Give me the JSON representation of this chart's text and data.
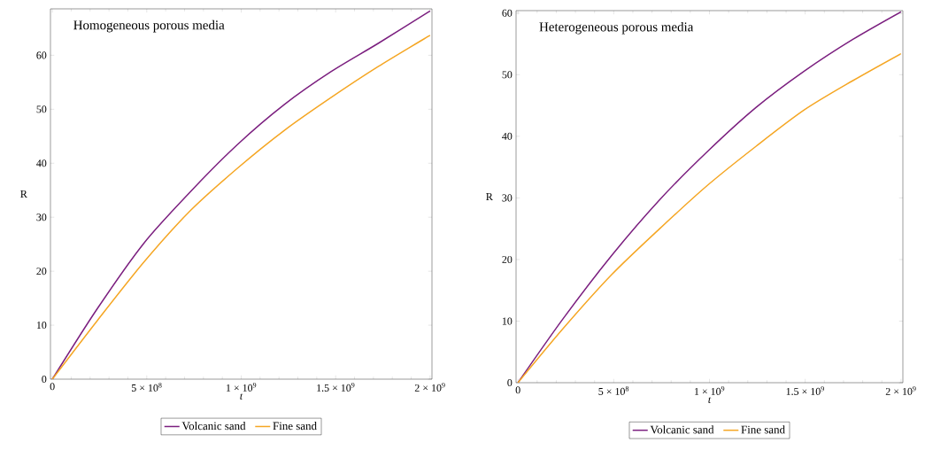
{
  "chart_data": [
    {
      "type": "line",
      "title": "Homogeneous porous media",
      "xlabel": "t",
      "ylabel": "R",
      "x": [
        0,
        237000000,
        485000000,
        733000000,
        981000000,
        1229000000,
        1477000000,
        1725000000,
        2000000000
      ],
      "series": [
        {
          "name": "Volcanic sand",
          "color": "#7b1f7f",
          "values": [
            0,
            13,
            25.2,
            34.8,
            43.5,
            50.9,
            57,
            62.2,
            68.2
          ]
        },
        {
          "name": "Fine sand",
          "color": "#f5a623",
          "values": [
            0,
            10.8,
            21.7,
            31.3,
            39.1,
            46.1,
            52.2,
            57.9,
            63.7
          ]
        }
      ],
      "xlim": [
        -10000000,
        2010000000
      ],
      "ylim": [
        0,
        68.6
      ],
      "xticks": [
        0,
        {
          "value": 500000000,
          "label": "5 × 10$^{8}$"
        },
        {
          "value": 1000000000,
          "label": "1 × 10$^{9}$"
        },
        {
          "value": 1500000000,
          "label": "1.5 × 10$^{9}$"
        },
        {
          "value": 2000000000,
          "label": "2 × 10$^{9}$"
        }
      ],
      "yticks": [
        0,
        10,
        20,
        30,
        40,
        50,
        60
      ],
      "legend": "bottom",
      "line_style": "solid"
    },
    {
      "type": "line",
      "title": "Heterogeneous porous media",
      "xlabel": "t",
      "ylabel": "R",
      "x": [
        0,
        236000000,
        488000000,
        740000000,
        992000000,
        1244000000,
        1496000000,
        1747000000,
        2000000000
      ],
      "series": [
        {
          "name": "Volcanic sand",
          "color": "#7b1f7f",
          "values": [
            0,
            10.4,
            20.6,
            29.7,
            37.6,
            44.7,
            50.6,
            55.7,
            60.2
          ]
        },
        {
          "name": "Fine sand",
          "color": "#f5a623",
          "values": [
            0,
            8.8,
            17.5,
            25,
            32.1,
            38.4,
            44.3,
            49,
            53.4
          ]
        }
      ],
      "xlim": [
        -10000000,
        2010000000
      ],
      "ylim": [
        0,
        60.4
      ],
      "xticks": [
        0,
        {
          "value": 500000000,
          "label": "5 × 10$^{8}$"
        },
        {
          "value": 1000000000,
          "label": "1 × 10$^{9}$"
        },
        {
          "value": 1500000000,
          "label": "1.5 × 10$^{9}$"
        },
        {
          "value": 2000000000,
          "label": "2 × 10$^{9}$"
        }
      ],
      "yticks": [
        0,
        10,
        20,
        30,
        40,
        50,
        60
      ],
      "legend": "bottom",
      "line_style": "solid"
    }
  ]
}
